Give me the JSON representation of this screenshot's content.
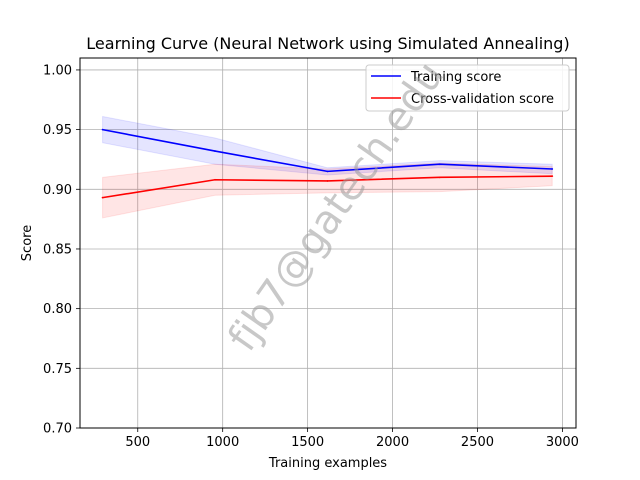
{
  "chart_data": {
    "type": "line",
    "title": "Learning Curve (Neural Network using Simulated Annealing)",
    "xlabel": "Training examples",
    "ylabel": "Score",
    "xlim": [
      160,
      3080
    ],
    "ylim": [
      0.7,
      1.01
    ],
    "xticks": [
      500,
      1000,
      1500,
      2000,
      2500,
      3000
    ],
    "xtick_labels": [
      "500",
      "1000",
      "1500",
      "2000",
      "2500",
      "3000"
    ],
    "yticks": [
      0.7,
      0.75,
      0.8,
      0.85,
      0.9,
      0.95,
      1.0
    ],
    "ytick_labels": [
      "0.70",
      "0.75",
      "0.80",
      "0.85",
      "0.90",
      "0.95",
      "1.00"
    ],
    "grid": true,
    "legend_position": "top-right",
    "x": [
      293,
      955,
      1617,
      2278,
      2940
    ],
    "series": [
      {
        "name": "Training score",
        "color": "#0000ff",
        "values": [
          0.95,
          0.932,
          0.915,
          0.921,
          0.917
        ],
        "upper": [
          0.961,
          0.943,
          0.918,
          0.924,
          0.921
        ],
        "lower": [
          0.939,
          0.921,
          0.912,
          0.918,
          0.913
        ]
      },
      {
        "name": "Cross-validation score",
        "color": "#ff0000",
        "values": [
          0.893,
          0.908,
          0.907,
          0.91,
          0.911
        ],
        "upper": [
          0.91,
          0.921,
          0.917,
          0.922,
          0.919
        ],
        "lower": [
          0.876,
          0.895,
          0.897,
          0.898,
          0.903
        ]
      }
    ]
  },
  "watermark": "fjb7@gatech.edu"
}
